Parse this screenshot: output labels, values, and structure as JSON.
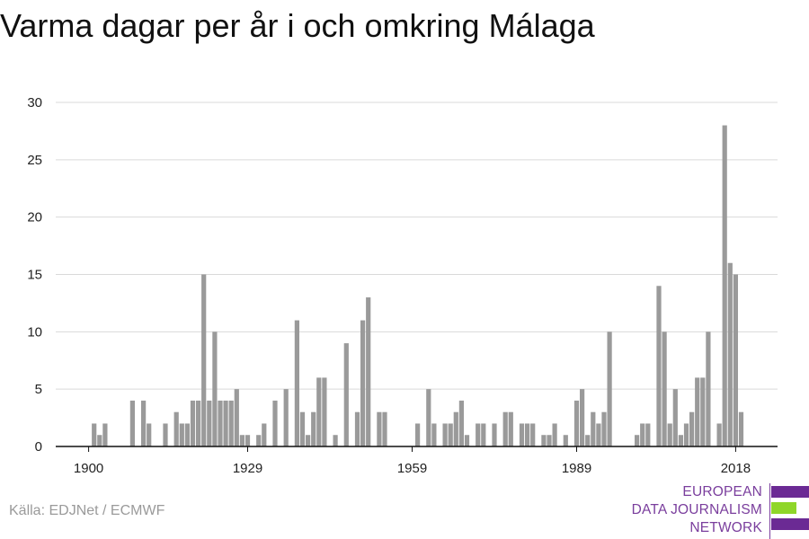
{
  "title": "Varma dagar per år i och omkring Málaga",
  "source": "Källa: EDJNet / ECMWF",
  "logo": {
    "lines": [
      "EUROPEAN",
      "DATA JOURNALISM",
      "NETWORK"
    ],
    "colors": {
      "purple": "#6b2a94",
      "green": "#8fd629",
      "text": "#7a3e9d"
    }
  },
  "colors": {
    "bar": "#9a9a9a",
    "grid": "#d9d9d9",
    "axis": "#111111",
    "tick_text": "#222222"
  },
  "chart_data": {
    "type": "bar",
    "title": "Varma dagar per år i och omkring Málaga",
    "xlabel": "",
    "ylabel": "",
    "ylim": [
      0,
      30
    ],
    "yticks": [
      0,
      5,
      10,
      15,
      20,
      25,
      30
    ],
    "xticks": [
      1900,
      1929,
      1959,
      1989,
      2018
    ],
    "grid": true,
    "x": [
      1900,
      1901,
      1902,
      1903,
      1904,
      1905,
      1906,
      1907,
      1908,
      1909,
      1910,
      1911,
      1912,
      1913,
      1914,
      1915,
      1916,
      1917,
      1918,
      1919,
      1920,
      1921,
      1922,
      1923,
      1924,
      1925,
      1926,
      1927,
      1928,
      1929,
      1930,
      1931,
      1932,
      1933,
      1934,
      1935,
      1936,
      1937,
      1938,
      1939,
      1940,
      1941,
      1942,
      1943,
      1944,
      1945,
      1946,
      1947,
      1948,
      1949,
      1950,
      1951,
      1952,
      1953,
      1954,
      1955,
      1956,
      1957,
      1958,
      1959,
      1960,
      1961,
      1962,
      1963,
      1964,
      1965,
      1966,
      1967,
      1968,
      1969,
      1970,
      1971,
      1972,
      1973,
      1974,
      1975,
      1976,
      1977,
      1978,
      1979,
      1980,
      1981,
      1982,
      1983,
      1984,
      1985,
      1986,
      1987,
      1988,
      1989,
      1990,
      1991,
      1992,
      1993,
      1994,
      1995,
      1996,
      1997,
      1998,
      1999,
      2000,
      2001,
      2002,
      2003,
      2004,
      2005,
      2006,
      2007,
      2008,
      2009,
      2010,
      2011,
      2012,
      2013,
      2014,
      2015,
      2016,
      2017,
      2018,
      2019,
      2020
    ],
    "values": [
      0,
      2,
      1,
      2,
      0,
      0,
      0,
      0,
      4,
      0,
      4,
      2,
      0,
      0,
      2,
      0,
      3,
      2,
      2,
      4,
      4,
      15,
      4,
      10,
      4,
      4,
      4,
      5,
      1,
      1,
      0,
      1,
      2,
      0,
      4,
      0,
      5,
      0,
      11,
      3,
      1,
      3,
      6,
      6,
      0,
      1,
      0,
      9,
      0,
      3,
      11,
      13,
      0,
      3,
      3,
      0,
      0,
      0,
      0,
      0,
      2,
      0,
      5,
      2,
      0,
      2,
      2,
      3,
      4,
      1,
      0,
      2,
      2,
      0,
      2,
      0,
      3,
      3,
      0,
      2,
      2,
      2,
      0,
      1,
      1,
      2,
      0,
      1,
      0,
      4,
      5,
      1,
      3,
      2,
      3,
      10,
      0,
      0,
      0,
      0,
      1,
      2,
      2,
      0,
      14,
      10,
      2,
      5,
      1,
      2,
      3,
      6,
      6,
      10,
      0,
      2,
      28,
      16,
      15,
      3,
      0
    ]
  }
}
